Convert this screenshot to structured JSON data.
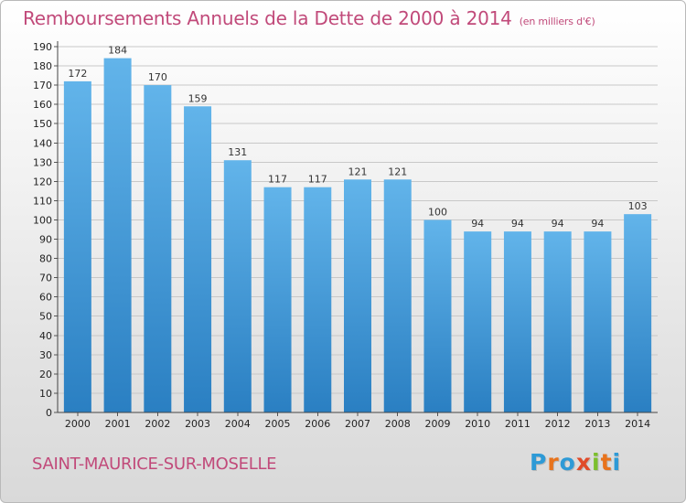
{
  "title": "Remboursements Annuels de la Dette de 2000 à 2014",
  "subtitle": "(en milliers d'€)",
  "commune": "SAINT-MAURICE-SUR-MOSELLE",
  "logo": {
    "letters": [
      "P",
      "r",
      "o",
      "x",
      "i",
      "t",
      "i"
    ],
    "colors": [
      "#2e9ad6",
      "#e8731c",
      "#2e9ad6",
      "#e04b2a",
      "#7cbf2d",
      "#e8731c",
      "#2e9ad6"
    ]
  },
  "colors": {
    "bar_light": "#62b4ea",
    "bar_dark": "#2a7fc2",
    "grid": "#c8c8c8",
    "title": "#c14a7a"
  },
  "chart_data": {
    "type": "bar",
    "title": "Remboursements Annuels de la Dette de 2000 à 2014",
    "xlabel": "",
    "ylabel": "",
    "ylim": [
      0,
      190
    ],
    "yticks": [
      0,
      10,
      20,
      30,
      40,
      50,
      60,
      70,
      80,
      90,
      100,
      110,
      120,
      130,
      140,
      150,
      160,
      170,
      180,
      190
    ],
    "grid": true,
    "categories": [
      "2000",
      "2001",
      "2002",
      "2003",
      "2004",
      "2005",
      "2006",
      "2007",
      "2008",
      "2009",
      "2010",
      "2011",
      "2012",
      "2013",
      "2014"
    ],
    "values": [
      172,
      184,
      170,
      159,
      131,
      117,
      117,
      121,
      121,
      100,
      94,
      94,
      94,
      94,
      103
    ]
  }
}
